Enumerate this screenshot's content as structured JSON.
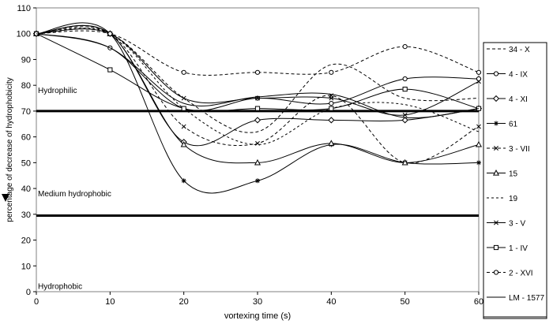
{
  "chart_data": {
    "type": "line",
    "xlabel": "vortexing time (s)",
    "ylabel": "percentage of decrease of hydrophobicity",
    "xlim": [
      0,
      60
    ],
    "ylim": [
      0,
      110
    ],
    "x_ticks": [
      0,
      10,
      20,
      30,
      40,
      50,
      60
    ],
    "y_ticks": [
      0,
      10,
      20,
      30,
      40,
      50,
      60,
      70,
      80,
      90,
      100,
      110
    ],
    "grid": false,
    "legend_position": "right",
    "x": [
      0,
      10,
      20,
      30,
      40,
      50,
      60
    ],
    "reference_lines": [
      {
        "y": 70,
        "label": "Hydrophilic"
      },
      {
        "y": 29.5,
        "label": "Medium hydrophobic"
      }
    ],
    "region_labels": [
      {
        "text": "Hydrophilic",
        "y": 77
      },
      {
        "text": "Medium hydrophobic",
        "y": 37
      },
      {
        "text": "Hydrophobic",
        "y": 1
      }
    ],
    "series": [
      {
        "name": "34 - X",
        "values": [
          100,
          100,
          75,
          62,
          88,
          75,
          75
        ]
      },
      {
        "name": "4 - IX",
        "values": [
          100,
          94.5,
          71,
          75,
          73,
          82.5,
          82.5
        ]
      },
      {
        "name": "4 - XI",
        "values": [
          100,
          100,
          58,
          66.5,
          66.5,
          66.5,
          71
        ]
      },
      {
        "name": "61",
        "values": [
          100,
          100,
          43,
          43,
          57,
          50,
          50
        ]
      },
      {
        "name": "3 - VII",
        "values": [
          100,
          100,
          64,
          57.5,
          76,
          50,
          64
        ]
      },
      {
        "name": "15",
        "values": [
          100,
          100,
          57,
          50,
          57.5,
          50,
          57
        ]
      },
      {
        "name": "19",
        "values": [
          100,
          100,
          71,
          57,
          71,
          72.5,
          62
        ]
      },
      {
        "name": "3 - V",
        "values": [
          100,
          100,
          75,
          75,
          75,
          68.5,
          81.5
        ]
      },
      {
        "name": "1 - IV",
        "values": [
          100,
          86,
          71,
          71,
          71,
          78.5,
          71
        ]
      },
      {
        "name": "2 - XVI",
        "values": [
          100,
          100,
          85,
          85,
          85,
          95,
          85
        ]
      },
      {
        "name": "LM - 1577",
        "values": [
          100,
          94.5,
          73,
          75.5,
          76.5,
          67.5,
          71
        ]
      }
    ]
  }
}
